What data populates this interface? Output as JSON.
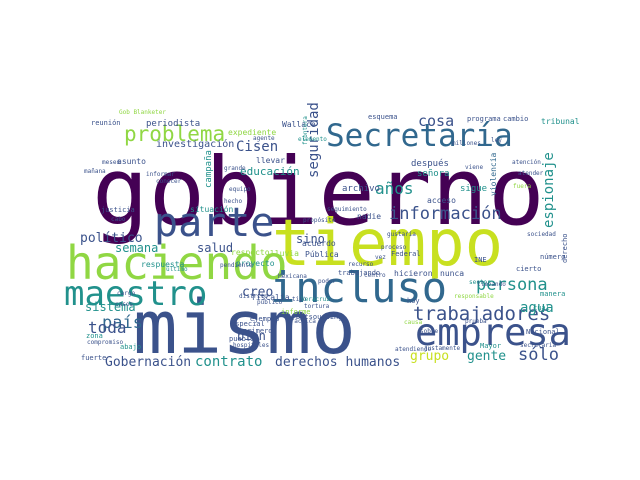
{
  "palette": {
    "purple": "#440154",
    "darkblue": "#3b528b",
    "slate": "#31688e",
    "teal": "#21918c",
    "green": "#35b779",
    "lime": "#90d743",
    "yellow": "#c8e020"
  },
  "words": [
    {
      "text": "gobierno",
      "color": "purple"
    },
    {
      "text": "mismo",
      "color": "darkblue"
    },
    {
      "text": "tiempo",
      "color": "yellow"
    },
    {
      "text": "haciendo",
      "color": "lime"
    },
    {
      "text": "parte",
      "color": "darkblue"
    },
    {
      "text": "incluso",
      "color": "slate"
    },
    {
      "text": "empresa",
      "color": "darkblue"
    },
    {
      "text": "maestro",
      "color": "teal"
    },
    {
      "text": "Secretaría",
      "color": "slate"
    },
    {
      "text": "problema",
      "color": "lime"
    },
    {
      "text": "información",
      "color": "darkblue"
    },
    {
      "text": "trabajadores",
      "color": "darkblue"
    },
    {
      "text": "persona",
      "color": "teal"
    },
    {
      "text": "sólo",
      "color": "darkblue"
    },
    {
      "text": "país",
      "color": "slate"
    },
    {
      "text": "toda",
      "color": "darkblue"
    },
    {
      "text": "Cisen",
      "color": "darkblue"
    },
    {
      "text": "años",
      "color": "teal"
    },
    {
      "text": "cosa",
      "color": "darkblue"
    },
    {
      "text": "contrato",
      "color": "teal"
    },
    {
      "text": "derechos humanos",
      "color": "darkblue"
    },
    {
      "text": "Gobernación",
      "color": "darkblue"
    },
    {
      "text": "seguridad",
      "color": "darkblue"
    },
    {
      "text": "espionaje",
      "color": "teal"
    },
    {
      "text": "agua",
      "color": "teal"
    },
    {
      "text": "gente",
      "color": "teal"
    },
    {
      "text": "grupo",
      "color": "yellow"
    },
    {
      "text": "político",
      "color": "darkblue"
    },
    {
      "text": "semana",
      "color": "teal"
    },
    {
      "text": "salud",
      "color": "darkblue"
    },
    {
      "text": "sistema",
      "color": "teal"
    },
    {
      "text": "bien",
      "color": "darkblue"
    },
    {
      "text": "creo",
      "color": "darkblue"
    },
    {
      "text": "sino",
      "color": "darkblue"
    },
    {
      "text": "educación",
      "color": "teal"
    },
    {
      "text": "investigación",
      "color": "darkblue"
    },
    {
      "text": "periodista",
      "color": "darkblue"
    },
    {
      "text": "campaña",
      "color": "teal"
    },
    {
      "text": "archivo",
      "color": "darkblue"
    },
    {
      "text": "después",
      "color": "darkblue"
    },
    {
      "text": "señora",
      "color": "teal"
    },
    {
      "text": "sigue",
      "color": "teal"
    },
    {
      "text": "acuerdo",
      "color": "darkblue"
    },
    {
      "text": "asunto",
      "color": "darkblue"
    },
    {
      "text": "situación",
      "color": "teal"
    },
    {
      "text": "nadie",
      "color": "darkblue"
    },
    {
      "text": "hicieron",
      "color": "darkblue"
    },
    {
      "text": "nunca",
      "color": "darkblue"
    },
    {
      "text": "acceso",
      "color": "darkblue"
    },
    {
      "text": "llevar",
      "color": "darkblue"
    },
    {
      "text": "Wallace",
      "color": "darkblue"
    },
    {
      "text": "expediente",
      "color": "lime"
    },
    {
      "text": "violencia",
      "color": "slate"
    },
    {
      "text": "reunión",
      "color": "darkblue"
    },
    {
      "text": "Gob Blanketer",
      "color": "lime"
    },
    {
      "text": "esquema",
      "color": "darkblue"
    },
    {
      "text": "programa",
      "color": "darkblue"
    },
    {
      "text": "cambio",
      "color": "darkblue"
    },
    {
      "text": "tribunal",
      "color": "teal"
    },
    {
      "text": "respuesta",
      "color": "teal"
    },
    {
      "text": "respecto",
      "color": "lime"
    },
    {
      "text": "lluvia",
      "color": "lime"
    },
    {
      "text": "Pública",
      "color": "darkblue"
    },
    {
      "text": "fiscalía",
      "color": "darkblue"
    },
    {
      "text": "proyecto",
      "color": "teal"
    },
    {
      "text": "ejemplo",
      "color": "darkblue"
    },
    {
      "text": "outsourcing",
      "color": "darkblue"
    },
    {
      "text": "primero",
      "color": "darkblue"
    },
    {
      "text": "especial",
      "color": "darkblue"
    },
    {
      "text": "pueblo",
      "color": "darkblue"
    },
    {
      "text": "informe",
      "color": "lime"
    },
    {
      "text": "Nacional",
      "color": "darkblue"
    },
    {
      "text": "cual",
      "color": "teal"
    },
    {
      "text": "hoy",
      "color": "darkblue"
    },
    {
      "text": "trabajando",
      "color": "darkblue"
    },
    {
      "text": "Federal",
      "color": "darkblue"
    },
    {
      "text": "Mayor",
      "color": "teal"
    },
    {
      "text": "manera",
      "color": "teal"
    },
    {
      "text": "cierto",
      "color": "darkblue"
    },
    {
      "text": "número",
      "color": "darkblue"
    },
    {
      "text": "derecho",
      "color": "darkblue"
    },
    {
      "text": "INE",
      "color": "darkblue"
    },
    {
      "text": "zona",
      "color": "teal"
    },
    {
      "text": "abajo",
      "color": "teal"
    },
    {
      "text": "fuerte",
      "color": "darkblue"
    },
    {
      "text": "justicia",
      "color": "darkblue"
    },
    {
      "text": "cargo",
      "color": "darkblue"
    },
    {
      "text": "hecho",
      "color": "darkblue"
    },
    {
      "text": "equipo",
      "color": "darkblue"
    },
    {
      "text": "informar",
      "color": "darkblue"
    },
    {
      "text": "conocer",
      "color": "darkblue"
    },
    {
      "text": "tortura",
      "color": "darkblue"
    },
    {
      "text": "proceso",
      "color": "darkblue"
    },
    {
      "text": "prueba",
      "color": "darkblue"
    },
    {
      "text": "sociedad",
      "color": "darkblue"
    },
    {
      "text": "atender",
      "color": "darkblue"
    },
    {
      "text": "fuera",
      "color": "lime"
    },
    {
      "text": "atención",
      "color": "darkblue"
    },
    {
      "text": "sector",
      "color": "teal"
    },
    {
      "text": "hospitales",
      "color": "darkblue"
    },
    {
      "text": "compromiso",
      "color": "darkblue"
    },
    {
      "text": "distrito",
      "color": "darkblue"
    },
    {
      "text": "público",
      "color": "darkblue"
    },
    {
      "text": "tipo",
      "color": "darkblue"
    },
    {
      "text": "Veracruz",
      "color": "teal"
    },
    {
      "text": "Mexicana",
      "color": "darkblue"
    },
    {
      "text": "último",
      "color": "teal"
    },
    {
      "text": "pendiente",
      "color": "darkblue"
    },
    {
      "text": "poder",
      "color": "darkblue"
    },
    {
      "text": "vez",
      "color": "darkblue"
    },
    {
      "text": "grande",
      "color": "darkblue"
    },
    {
      "text": "agente",
      "color": "darkblue"
    },
    {
      "text": "práctica",
      "color": "darkblue"
    },
    {
      "text": "frontera",
      "color": "teal"
    },
    {
      "text": "centro",
      "color": "darkblue"
    },
    {
      "text": "recurso",
      "color": "darkblue"
    },
    {
      "text": "elemento",
      "color": "teal"
    },
    {
      "text": "viene",
      "color": "darkblue"
    },
    {
      "text": "seguimiento",
      "color": "darkblue"
    },
    {
      "text": "mañana",
      "color": "darkblue"
    },
    {
      "text": "meses",
      "color": "darkblue"
    },
    {
      "text": "casos",
      "color": "darkblue"
    },
    {
      "text": "propósito",
      "color": "darkblue"
    },
    {
      "text": "millones",
      "color": "darkblue"
    },
    {
      "text": "secretaria",
      "color": "darkblue"
    },
    {
      "text": "atendiendo",
      "color": "darkblue"
    },
    {
      "text": "justamente",
      "color": "darkblue"
    },
    {
      "text": "llevando",
      "color": "darkblue"
    },
    {
      "text": "ley",
      "color": "darkblue"
    },
    {
      "text": "cabo",
      "color": "darkblue"
    },
    {
      "text": "responsable",
      "color": "lime"
    },
    {
      "text": "causa",
      "color": "lime"
    },
    {
      "text": "gustaría",
      "color": "darkblue"
    },
    {
      "text": "sobre",
      "color": "darkblue"
    }
  ]
}
